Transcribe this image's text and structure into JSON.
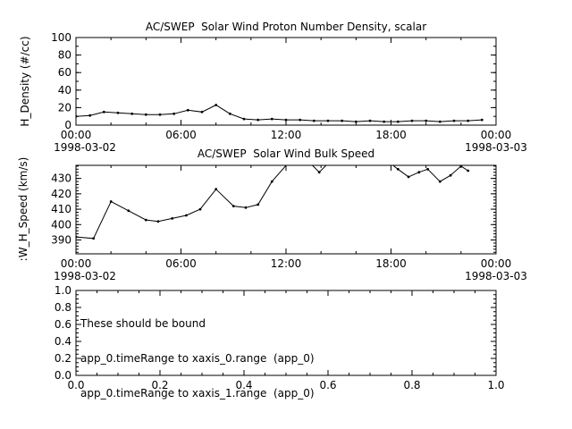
{
  "canvas": {
    "bg": "#ffffff",
    "fg": "#000000"
  },
  "chart_data": [
    {
      "type": "line",
      "title": "AC/SWEP  Solar Wind Proton Number Density, scalar",
      "ylabel": "H_Density (#/cc)",
      "ylim": [
        0,
        100
      ],
      "yticks": [
        0,
        20,
        40,
        60,
        80,
        100
      ],
      "ytick_labels": [
        "0",
        "20",
        "40",
        "60",
        "80",
        "100"
      ],
      "yminor_step": 10,
      "xlim_hours": [
        0,
        24
      ],
      "xticks_hours": [
        0,
        6,
        12,
        18,
        24
      ],
      "xtick_labels": [
        "00:00",
        "06:00",
        "12:00",
        "18:00",
        "00:00"
      ],
      "xminor_step_hours": 2,
      "date_left": "1998-03-02",
      "date_right": "1998-03-03",
      "x_hours": [
        0.0,
        0.8,
        1.6,
        2.4,
        3.2,
        4.0,
        4.8,
        5.6,
        6.4,
        7.2,
        8.0,
        8.8,
        9.6,
        10.4,
        11.2,
        12.0,
        12.8,
        13.6,
        14.4,
        15.2,
        16.0,
        16.8,
        17.6,
        18.4,
        19.2,
        20.0,
        20.8,
        21.6,
        22.4,
        23.2
      ],
      "values": [
        10,
        11,
        15,
        14,
        13,
        12,
        12,
        13,
        17,
        15,
        23,
        13,
        7,
        6,
        7,
        6,
        6,
        5,
        5,
        5,
        4,
        5,
        4,
        4,
        5,
        5,
        4,
        5,
        5,
        6
      ]
    },
    {
      "type": "line",
      "title": "AC/SWEP  Solar Wind Bulk Speed",
      "ylabel": ":W_H_Speed (km/s)",
      "ylim": [
        381,
        438.5
      ],
      "yticks": [
        390,
        400,
        410,
        420,
        430
      ],
      "ytick_labels": [
        "390",
        "400",
        "410",
        "420",
        "430"
      ],
      "yminor_step": 2,
      "xlim_hours": [
        0,
        24
      ],
      "xticks_hours": [
        0,
        6,
        12,
        18,
        24
      ],
      "xtick_labels": [
        "00:00",
        "06:00",
        "12:00",
        "18:00",
        "00:00"
      ],
      "xminor_step_hours": 2,
      "date_left": "1998-03-02",
      "date_right": "1998-03-03",
      "x_hours": [
        0.0,
        1.0,
        2.0,
        3.0,
        4.0,
        4.7,
        5.5,
        6.3,
        7.1,
        8.0,
        9.0,
        9.7,
        10.4,
        11.2,
        12.2,
        13.2,
        13.9,
        14.6,
        15.6,
        16.6,
        17.6,
        18.4,
        19.0,
        19.6,
        20.1,
        20.8,
        21.4,
        22.0,
        22.4
      ],
      "values": [
        392,
        391,
        415,
        409,
        403,
        402,
        404,
        406,
        410,
        423,
        412,
        411,
        413,
        428,
        441,
        442,
        434,
        442,
        446,
        445,
        443,
        436,
        431,
        434,
        436,
        428,
        432,
        438,
        435
      ]
    },
    {
      "type": "empty",
      "annotation_lines": [
        "These should be bound",
        "app_0.timeRange to xaxis_0.range  (app_0)",
        "app_0.timeRange to xaxis_1.range  (app_0)"
      ],
      "xlim": [
        0,
        1
      ],
      "ylim": [
        0,
        1
      ],
      "xticks": [
        0,
        0.2,
        0.4,
        0.6,
        0.8,
        1
      ],
      "xtick_labels": [
        "0.0",
        "0.2",
        "0.4",
        "0.6",
        "0.8",
        "1.0"
      ],
      "xminor_step": 0.05,
      "yticks": [
        0,
        0.2,
        0.4,
        0.6,
        0.8,
        1
      ],
      "ytick_labels": [
        "0.0",
        "0.2",
        "0.4",
        "0.6",
        "0.8",
        "1.0"
      ],
      "yminor_step": 0.05
    }
  ]
}
